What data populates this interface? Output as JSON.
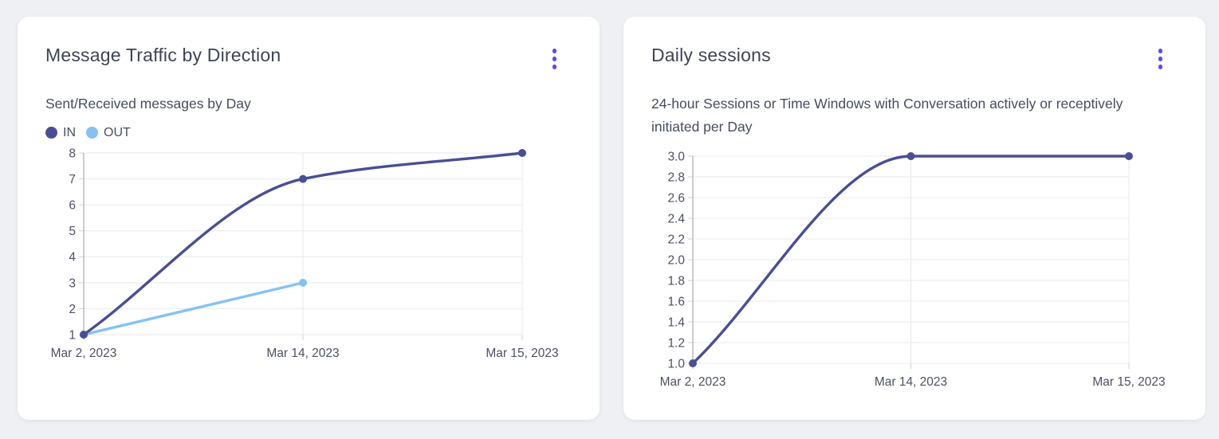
{
  "cards": [
    {
      "title": "Message Traffic by Direction",
      "subtitle": "Sent/Received messages by Day",
      "menu_icon": "kebab-menu"
    },
    {
      "title": "Daily sessions",
      "subtitle": "24-hour Sessions or Time Windows with Conversation actively or receptively initiated per Day",
      "menu_icon": "kebab-menu"
    }
  ],
  "colors": {
    "accent": "#5a4cf0",
    "series_in": "#4a4e92",
    "series_out": "#85c2f2",
    "grid": "#e8e9ed",
    "axis": "#a8acb4",
    "tick": "#cfd1d6",
    "card_bg": "#ffffff",
    "page_bg": "#eef0f3",
    "title_text": "#3f4456",
    "body_text": "#474c5e",
    "tick_text": "#4c515f"
  },
  "chart_data": [
    {
      "type": "line",
      "title": "Message Traffic by Direction",
      "subtitle": "Sent/Received messages by Day",
      "categories": [
        "Mar 2, 2023",
        "Mar 14, 2023",
        "Mar 15, 2023"
      ],
      "series": [
        {
          "name": "IN",
          "color": "#4a4e92",
          "values": [
            1,
            7,
            8
          ]
        },
        {
          "name": "OUT",
          "color": "#85c2f2",
          "values": [
            1,
            3,
            null
          ]
        }
      ],
      "ylim": [
        1,
        8
      ],
      "y_ticks": [
        1,
        2,
        3,
        4,
        5,
        6,
        7,
        8
      ],
      "y_tick_labels": [
        "1",
        "2",
        "3",
        "4",
        "5",
        "6",
        "7",
        "8"
      ],
      "grid": true,
      "smooth": true,
      "legend_position": "top-left"
    },
    {
      "type": "line",
      "title": "Daily sessions",
      "subtitle": "24-hour Sessions or Time Windows with Conversation actively or receptively initiated per Day",
      "categories": [
        "Mar 2, 2023",
        "Mar 14, 2023",
        "Mar 15, 2023"
      ],
      "series": [
        {
          "name": "Daily sessions",
          "color": "#4a4e92",
          "values": [
            1,
            3,
            3
          ]
        }
      ],
      "ylim": [
        1,
        3
      ],
      "y_ticks": [
        1.0,
        1.2,
        1.4,
        1.6,
        1.8,
        2.0,
        2.2,
        2.4,
        2.6,
        2.8,
        3.0
      ],
      "y_tick_labels": [
        "1.0",
        "1.2",
        "1.4",
        "1.6",
        "1.8",
        "2.0",
        "2.2",
        "2.4",
        "2.6",
        "2.8",
        "3.0"
      ],
      "grid": true,
      "smooth": true,
      "legend_position": "none"
    }
  ]
}
